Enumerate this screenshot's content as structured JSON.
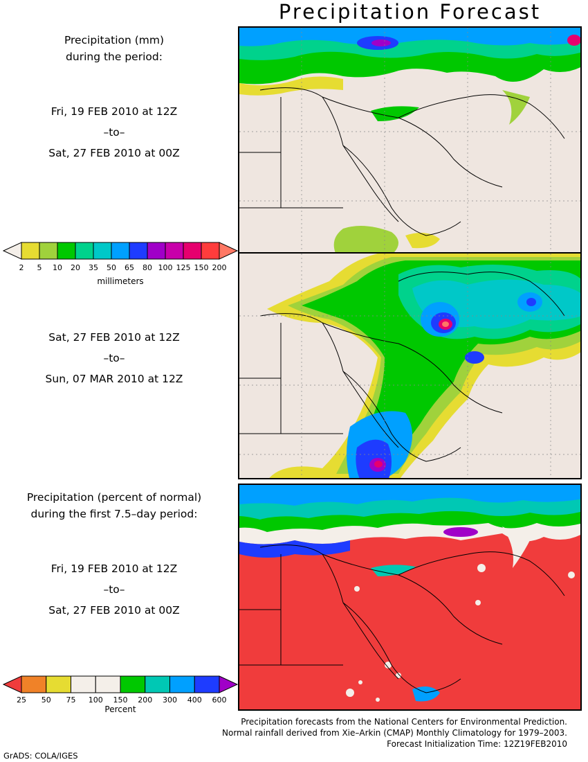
{
  "title": "Precipitation Forecast",
  "panel1": {
    "label_line1": "Precipitation (mm)",
    "label_line2": "during the period:",
    "from": "Fri, 19 FEB 2010 at 12Z",
    "sep": "–to–",
    "to": "Sat, 27 FEB 2010 at 00Z"
  },
  "panel2": {
    "from": "Sat, 27 FEB 2010 at 12Z",
    "sep": "–to–",
    "to": "Sun, 07 MAR 2010 at 12Z"
  },
  "panel3": {
    "label_line1": "Precipitation (percent of normal)",
    "label_line2": "during the first 7.5–day period:",
    "from": "Fri, 19 FEB 2010 at 12Z",
    "sep": "–to–",
    "to": "Sat, 27 FEB 2010 at 00Z"
  },
  "legend_mm": {
    "ticks": [
      "2",
      "5",
      "10",
      "20",
      "35",
      "50",
      "65",
      "80",
      "100",
      "125",
      "150",
      "200"
    ],
    "unit": "millimeters",
    "colors": [
      "#f4efe9",
      "#e6dc32",
      "#a0d23c",
      "#00c800",
      "#00d28c",
      "#00c8c8",
      "#00a0ff",
      "#1e3cff",
      "#a000c8",
      "#c800aa",
      "#e6006e",
      "#ff3c3c",
      "#ff7864"
    ]
  },
  "legend_pct": {
    "ticks": [
      "25",
      "50",
      "75",
      "100",
      "150",
      "200",
      "300",
      "400",
      "600"
    ],
    "unit": "Percent",
    "colors": [
      "#f03c3c",
      "#f08228",
      "#e6dc32",
      "#f4efe9",
      "#f4efe9",
      "#00c800",
      "#00c8b4",
      "#00a0ff",
      "#1e3cff",
      "#a000c8"
    ]
  },
  "credits": {
    "line1": "Precipitation forecasts from the National Centers for Environmental Prediction.",
    "line2": "Normal rainfall derived from Xie–Arkin (CMAP) Monthly Climatology for 1979–2003.",
    "line3": "Forecast Initialization Time: 12Z19FEB2010"
  },
  "footer": "GrADS: COLA/IGES"
}
